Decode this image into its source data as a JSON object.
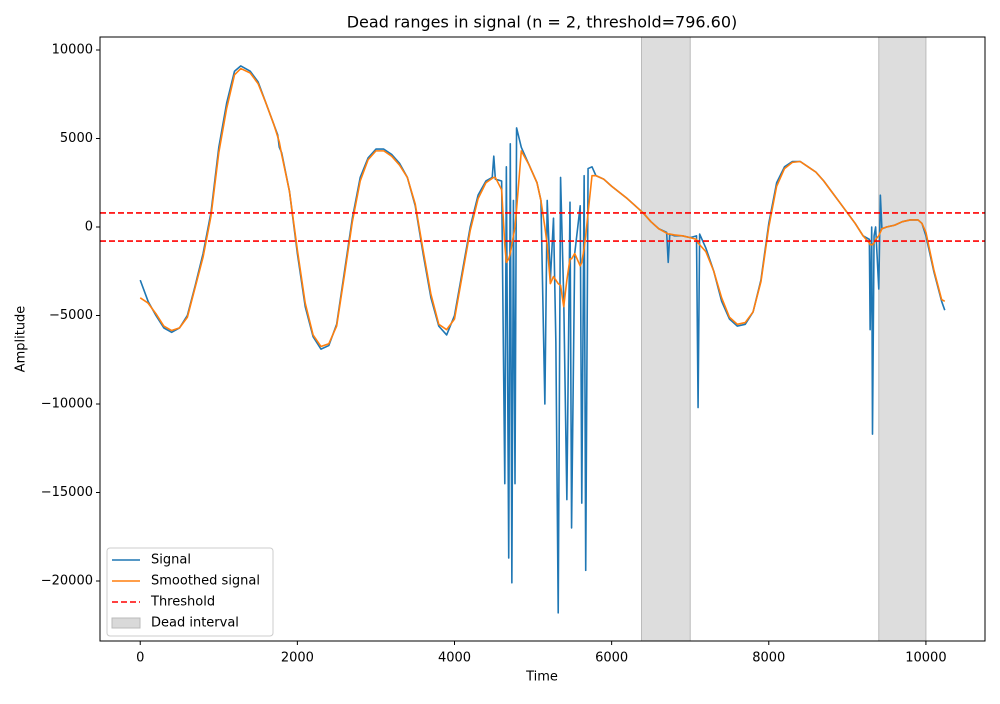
{
  "chart_data": {
    "type": "line",
    "title": "Dead ranges in signal (n = 2, threshold=796.60)",
    "x_label": "Time",
    "y_label": "Amplitude",
    "xlim": [
      -512,
      10752
    ],
    "ylim": [
      -23390,
      10734
    ],
    "xticks": [
      0,
      2000,
      4000,
      6000,
      8000,
      10000
    ],
    "yticks": [
      {
        "value": -20000,
        "label": "−20000"
      },
      {
        "value": -15000,
        "label": "−15000"
      },
      {
        "value": -10000,
        "label": "−10000"
      },
      {
        "value": -5000,
        "label": "−5000"
      },
      0,
      5000,
      10000
    ],
    "legend": "lower left",
    "grid": false,
    "x": [
      0,
      100,
      200,
      300,
      400,
      500,
      600,
      700,
      800,
      900,
      1000,
      1100,
      1200,
      1280,
      1400,
      1500,
      1600,
      1700,
      1750,
      1770,
      1800,
      1900,
      2000,
      2100,
      2200,
      2300,
      2400,
      2500,
      2600,
      2700,
      2800,
      2900,
      3000,
      3100,
      3200,
      3300,
      3400,
      3500,
      3600,
      3700,
      3800,
      3900,
      4000,
      4100,
      4200,
      4300,
      4400,
      4480,
      4500,
      4520,
      4600,
      4640,
      4660,
      4690,
      4710,
      4730,
      4750,
      4770,
      4790,
      4850,
      4950,
      5050,
      5100,
      5150,
      5180,
      5220,
      5260,
      5290,
      5320,
      5350,
      5390,
      5430,
      5470,
      5490,
      5530,
      5600,
      5620,
      5650,
      5670,
      5700,
      5750,
      5800,
      5900,
      6000,
      6200,
      6400,
      6500,
      6600,
      6700,
      6720,
      6740,
      6800,
      6900,
      7000,
      7080,
      7100,
      7120,
      7200,
      7300,
      7400,
      7500,
      7600,
      7700,
      7800,
      7900,
      8000,
      8100,
      8200,
      8300,
      8400,
      8500,
      8600,
      8700,
      8800,
      8900,
      9000,
      9100,
      9200,
      9280,
      9290,
      9310,
      9320,
      9340,
      9360,
      9400,
      9420,
      9440,
      9500,
      9600,
      9700,
      9800,
      9900,
      9950,
      10000,
      10100,
      10200,
      10240
    ],
    "series": [
      {
        "name": "Signal",
        "color": "#1f77b4",
        "values": [
          -3000,
          -4200,
          -5000,
          -5700,
          -5950,
          -5700,
          -5000,
          -3300,
          -1500,
          800,
          4500,
          7000,
          8800,
          9100,
          8800,
          8200,
          7000,
          5800,
          5200,
          4500,
          4200,
          2000,
          -1500,
          -4500,
          -6200,
          -6900,
          -6700,
          -5500,
          -2500,
          500,
          2800,
          3900,
          4400,
          4400,
          4100,
          3600,
          2800,
          1200,
          -1500,
          -4000,
          -5600,
          -6100,
          -5000,
          -2500,
          0,
          1800,
          2600,
          2800,
          4000,
          2700,
          2600,
          -14500,
          3400,
          -18700,
          4700,
          -20100,
          1500,
          -14500,
          5600,
          4500,
          3500,
          2500,
          1500,
          -10000,
          1500,
          -3000,
          500,
          -6500,
          -21800,
          2800,
          -4000,
          -15400,
          1400,
          -17000,
          -1500,
          1200,
          -15600,
          2900,
          -19400,
          3300,
          3400,
          2900,
          2700,
          2300,
          1600,
          800,
          300,
          -100,
          -300,
          -2000,
          -400,
          -500,
          -500,
          -600,
          -500,
          -10200,
          -400,
          -1200,
          -2500,
          -4200,
          -5200,
          -5600,
          -5500,
          -4800,
          -3000,
          200,
          2500,
          3400,
          3700,
          3700,
          3400,
          3100,
          2600,
          2000,
          1400,
          800,
          200,
          -500,
          -700,
          -5800,
          0,
          -11700,
          -500,
          0,
          -3500,
          1800,
          -100,
          0,
          100,
          300,
          400,
          400,
          200,
          -500,
          -2500,
          -4200,
          -4700
        ]
      },
      {
        "name": "Smoothed signal",
        "color": "#ff7f0e",
        "values": [
          -4000,
          -4300,
          -4900,
          -5600,
          -5850,
          -5700,
          -5100,
          -3400,
          -1700,
          600,
          4200,
          6700,
          8600,
          8950,
          8700,
          8100,
          7000,
          5800,
          5100,
          4800,
          4100,
          2000,
          -1300,
          -4300,
          -6100,
          -6750,
          -6600,
          -5600,
          -2700,
          300,
          2600,
          3800,
          4300,
          4300,
          4000,
          3500,
          2800,
          1300,
          -1300,
          -3800,
          -5500,
          -5800,
          -5200,
          -2700,
          -200,
          1600,
          2500,
          2750,
          2800,
          2800,
          2100,
          -1000,
          -2000,
          -1800,
          -1500,
          -1000,
          -500,
          0,
          1000,
          4300,
          3500,
          2500,
          1500,
          0,
          -1000,
          -3200,
          -2800,
          -3000,
          -3200,
          -3300,
          -4500,
          -3000,
          -1800,
          -1800,
          -1500,
          -2200,
          -2000,
          -1200,
          -500,
          800,
          2900,
          2900,
          2700,
          2300,
          1600,
          800,
          300,
          -100,
          -350,
          -400,
          -400,
          -450,
          -500,
          -600,
          -700,
          -900,
          -1000,
          -1400,
          -2500,
          -4000,
          -5100,
          -5500,
          -5400,
          -4800,
          -3100,
          0,
          2300,
          3300,
          3650,
          3700,
          3400,
          3100,
          2600,
          2000,
          1400,
          800,
          200,
          -500,
          -900,
          -1000,
          -1000,
          -1000,
          -900,
          -700,
          -500,
          -300,
          -100,
          0,
          100,
          300,
          400,
          400,
          200,
          -300,
          -2400,
          -4100,
          -4200
        ]
      }
    ],
    "threshold_lines": {
      "name": "Threshold",
      "color": "#ff0000",
      "values": [
        796.6,
        -796.6
      ]
    },
    "dead_intervals": {
      "name": "Dead interval",
      "color": "#d9d9d9",
      "ranges": [
        [
          6380,
          7000
        ],
        [
          9400,
          10000
        ]
      ]
    }
  }
}
